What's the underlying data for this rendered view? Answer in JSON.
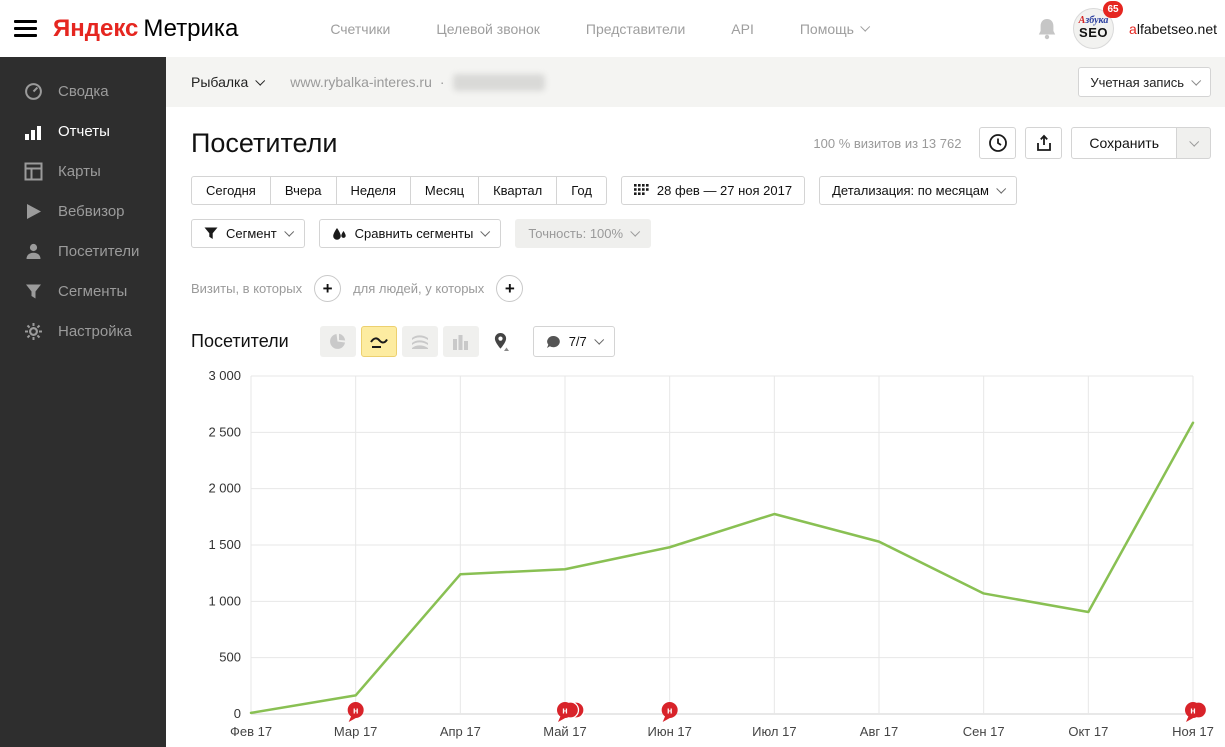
{
  "header": {
    "logo_brand": "Яндекс",
    "logo_product": "Метрика",
    "nav": [
      {
        "label": "Счетчики"
      },
      {
        "label": "Целевой звонок"
      },
      {
        "label": "Представители"
      },
      {
        "label": "API"
      },
      {
        "label": "Помощь"
      }
    ],
    "notifications_badge": "65",
    "avatar_line1": "Азбука",
    "avatar_line2": "SEO",
    "account_first": "a",
    "account_rest": "lfabetseo.net"
  },
  "sidebar": {
    "items": [
      {
        "label": "Сводка"
      },
      {
        "label": "Отчеты"
      },
      {
        "label": "Карты"
      },
      {
        "label": "Вебвизор"
      },
      {
        "label": "Посетители"
      },
      {
        "label": "Сегменты"
      },
      {
        "label": "Настройка"
      }
    ]
  },
  "counter_bar": {
    "counter_name": "Рыбалка",
    "site_url": "www.rybalka-interes.ru",
    "separator": "·",
    "account_button": "Учетная запись"
  },
  "report": {
    "title": "Посетители",
    "visits_summary": "100 % визитов из 13 762",
    "save_button": "Сохранить",
    "period_buttons": [
      "Сегодня",
      "Вчера",
      "Неделя",
      "Месяц",
      "Квартал",
      "Год"
    ],
    "date_range": "28 фев — 27 ноя 2017",
    "detail_button": "Детализация: по месяцам",
    "segment_button": "Сегмент",
    "compare_button": "Сравнить сегменты",
    "accuracy_button": "Точность: 100%",
    "filter_visits_label": "Визиты, в которых",
    "filter_people_label": "для людей, у которых",
    "chart_title": "Посетители",
    "goals_button": "7/7"
  },
  "icons": {
    "plus": "+"
  },
  "chart_data": {
    "type": "line",
    "title": "Посетители",
    "x": [
      "Фев 17",
      "Мар 17",
      "Апр 17",
      "Май 17",
      "Июн 17",
      "Июл 17",
      "Авг 17",
      "Сен 17",
      "Окт 17",
      "Ноя 17"
    ],
    "series": [
      {
        "name": "Посетители",
        "color": "#89c053",
        "values": [
          10,
          165,
          1240,
          1285,
          1480,
          1775,
          1530,
          1070,
          905,
          2585
        ]
      }
    ],
    "ylim": [
      0,
      3000
    ],
    "yticks": [
      0,
      500,
      1000,
      1500,
      2000,
      2500,
      3000
    ],
    "ytick_labels": [
      "0",
      "500",
      "1 000",
      "1 500",
      "2 000",
      "2 500",
      "3 000"
    ],
    "grid": true,
    "legend": "none",
    "markers": [
      {
        "x": "Мар 17",
        "count": 1,
        "label": "н"
      },
      {
        "x": "Май 17",
        "count": 3,
        "label": "н"
      },
      {
        "x": "Июн 17",
        "count": 1,
        "label": "н"
      },
      {
        "x": "Ноя 17",
        "count": 2,
        "label": "н"
      }
    ],
    "marker_color": "#d8232a"
  }
}
